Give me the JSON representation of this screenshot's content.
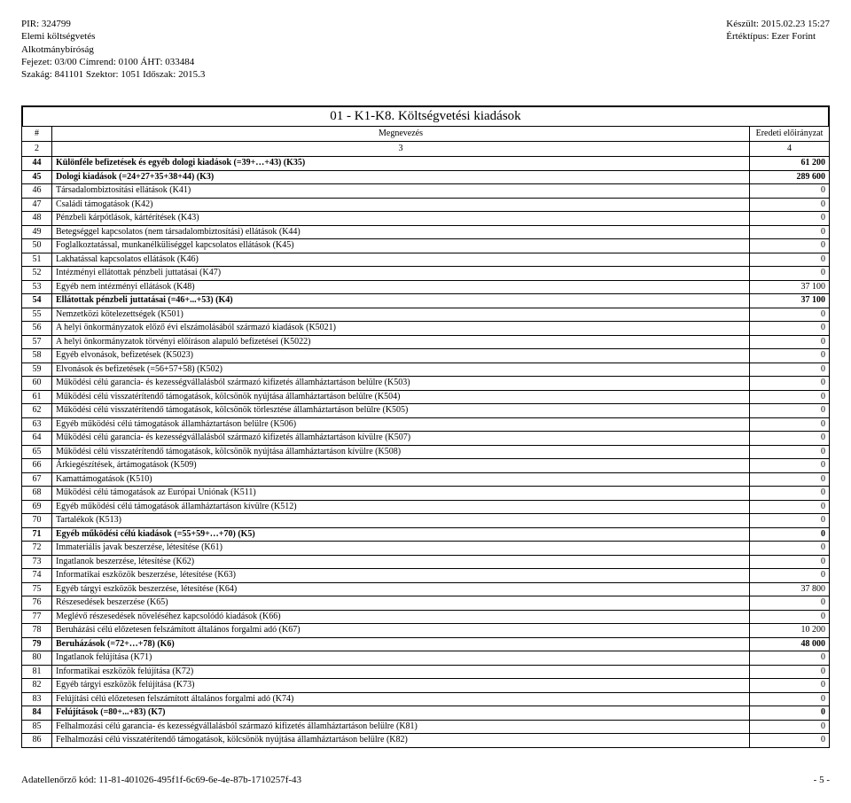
{
  "header": {
    "left": [
      "PIR: 324799",
      "Elemi költségvetés",
      "Alkotmánybíróság",
      "Fejezet: 03/00 Címrend: 0100 ÁHT: 033484",
      "Szakág: 841101 Szektor: 1051 Időszak: 2015.3"
    ],
    "right": [
      "Készült: 2015.02.23 15:27",
      "Értéktípus: Ezer Forint"
    ]
  },
  "title": "01 - K1-K8. Költségvetési kiadások",
  "columns": {
    "num": "#",
    "desc": "Megnevezés",
    "val": "Eredeti előirányzat"
  },
  "subhead": {
    "c1": "2",
    "c2": "3",
    "c3": "4"
  },
  "rows": [
    {
      "n": "44",
      "d": "Különféle befizetések és egyéb dologi kiadások (=39+…+43) (K35)",
      "v": "61 200",
      "b": true
    },
    {
      "n": "45",
      "d": "Dologi kiadások (=24+27+35+38+44) (K3)",
      "v": "289 600",
      "b": true
    },
    {
      "n": "46",
      "d": "Társadalombiztosítási ellátások (K41)",
      "v": "0"
    },
    {
      "n": "47",
      "d": "Családi támogatások (K42)",
      "v": "0"
    },
    {
      "n": "48",
      "d": "Pénzbeli kárpótlások, kártérítések (K43)",
      "v": "0"
    },
    {
      "n": "49",
      "d": "Betegséggel kapcsolatos (nem társadalombiztosítási) ellátások (K44)",
      "v": "0"
    },
    {
      "n": "50",
      "d": "Foglalkoztatással, munkanélküliséggel kapcsolatos ellátások (K45)",
      "v": "0"
    },
    {
      "n": "51",
      "d": "Lakhatással kapcsolatos ellátások (K46)",
      "v": "0"
    },
    {
      "n": "52",
      "d": "Intézményi ellátottak pénzbeli juttatásai (K47)",
      "v": "0"
    },
    {
      "n": "53",
      "d": "Egyéb nem intézményi ellátások (K48)",
      "v": "37 100"
    },
    {
      "n": "54",
      "d": "Ellátottak pénzbeli juttatásai (=46+...+53) (K4)",
      "v": "37 100",
      "b": true
    },
    {
      "n": "55",
      "d": "Nemzetközi kötelezettségek (K501)",
      "v": "0"
    },
    {
      "n": "56",
      "d": "A helyi önkormányzatok előző évi elszámolásából származó kiadások (K5021)",
      "v": "0"
    },
    {
      "n": "57",
      "d": "A helyi önkormányzatok törvényi előíráson alapuló befizetései (K5022)",
      "v": "0"
    },
    {
      "n": "58",
      "d": "Egyéb elvonások, befizetések (K5023)",
      "v": "0"
    },
    {
      "n": "59",
      "d": "Elvonások és befizetések (=56+57+58) (K502)",
      "v": "0"
    },
    {
      "n": "60",
      "d": "Működési célú garancia- és kezességvállalásból származó kifizetés államháztartáson belülre (K503)",
      "v": "0"
    },
    {
      "n": "61",
      "d": "Működési célú visszatérítendő támogatások, kölcsönök nyújtása államháztartáson belülre (K504)",
      "v": "0"
    },
    {
      "n": "62",
      "d": "Működési célú visszatérítendő támogatások, kölcsönök törlesztése államháztartáson belülre (K505)",
      "v": "0"
    },
    {
      "n": "63",
      "d": "Egyéb működési célú támogatások államháztartáson belülre (K506)",
      "v": "0"
    },
    {
      "n": "64",
      "d": "Működési célú garancia- és kezességvállalásból származó kifizetés államháztartáson kívülre (K507)",
      "v": "0"
    },
    {
      "n": "65",
      "d": "Működési célú visszatérítendő támogatások, kölcsönök nyújtása államháztartáson kívülre (K508)",
      "v": "0"
    },
    {
      "n": "66",
      "d": "Árkiegészítések, ártámogatások (K509)",
      "v": "0"
    },
    {
      "n": "67",
      "d": "Kamattámogatások (K510)",
      "v": "0"
    },
    {
      "n": "68",
      "d": "Működési célú támogatások az Európai Uniónak (K511)",
      "v": "0"
    },
    {
      "n": "69",
      "d": "Egyéb működési célú támogatások államháztartáson kívülre (K512)",
      "v": "0"
    },
    {
      "n": "70",
      "d": "Tartalékok (K513)",
      "v": "0"
    },
    {
      "n": "71",
      "d": "Egyéb működési célú kiadások (=55+59+…+70) (K5)",
      "v": "0",
      "b": true
    },
    {
      "n": "72",
      "d": "Immateriális javak beszerzése, létesítése (K61)",
      "v": "0"
    },
    {
      "n": "73",
      "d": "Ingatlanok beszerzése, létesítése (K62)",
      "v": "0"
    },
    {
      "n": "74",
      "d": "Informatikai eszközök beszerzése, létesítése (K63)",
      "v": "0"
    },
    {
      "n": "75",
      "d": "Egyéb tárgyi eszközök beszerzése, létesítése (K64)",
      "v": "37 800"
    },
    {
      "n": "76",
      "d": "Részesedések beszerzése (K65)",
      "v": "0"
    },
    {
      "n": "77",
      "d": "Meglévő részesedések növeléséhez kapcsolódó kiadások (K66)",
      "v": "0"
    },
    {
      "n": "78",
      "d": "Beruházási célú előzetesen felszámított általános forgalmi adó (K67)",
      "v": "10 200"
    },
    {
      "n": "79",
      "d": "Beruházások (=72+…+78) (K6)",
      "v": "48 000",
      "b": true
    },
    {
      "n": "80",
      "d": "Ingatlanok felújítása (K71)",
      "v": "0"
    },
    {
      "n": "81",
      "d": "Informatikai eszközök felújítása (K72)",
      "v": "0"
    },
    {
      "n": "82",
      "d": "Egyéb tárgyi eszközök felújítása (K73)",
      "v": "0"
    },
    {
      "n": "83",
      "d": "Felújítási célú előzetesen felszámított általános forgalmi adó (K74)",
      "v": "0"
    },
    {
      "n": "84",
      "d": "Felújítások (=80+...+83) (K7)",
      "v": "0",
      "b": true
    },
    {
      "n": "85",
      "d": "Felhalmozási célú garancia- és kezességvállalásból származó kifizetés államháztartáson belülre (K81)",
      "v": "0"
    },
    {
      "n": "86",
      "d": "Felhalmozási célú visszatérítendő támogatások, kölcsönök nyújtása államháztartáson belülre (K82)",
      "v": "0"
    }
  ],
  "footer": {
    "left": "Adatellenőrző kód: 11-81-401026-495f1f-6c69-6e-4e-87b-1710257f-43",
    "right": "- 5 -"
  }
}
